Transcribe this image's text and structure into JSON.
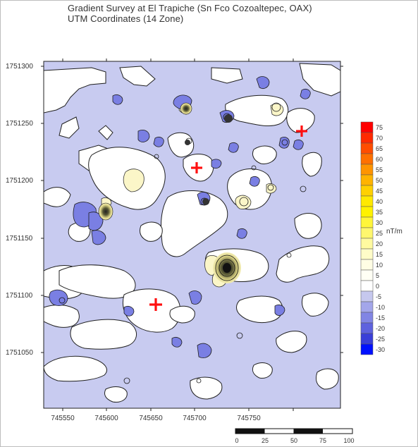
{
  "title": "Gradient Survey at El Trapiche (Sn Fco Cozoaltepec, OAX)",
  "subtitle": "UTM Coordinates (14 Zone)",
  "y_ticks": [
    "1751300",
    "1751250",
    "1751200",
    "1751150",
    "1751100",
    "1751050"
  ],
  "x_ticks": [
    "745550",
    "745600",
    "745650",
    "745700",
    "745750"
  ],
  "unit": "nT/m",
  "legend_levels": [
    "75",
    "70",
    "65",
    "60",
    "55",
    "50",
    "45",
    "40",
    "35",
    "30",
    "25",
    "20",
    "15",
    "10",
    "5",
    "0",
    "-5",
    "-10",
    "-15",
    "-20",
    "-25",
    "-30"
  ],
  "legend_colors": [
    "#ff0000",
    "#ff2a00",
    "#ff4d00",
    "#ff7000",
    "#ff9400",
    "#ffb300",
    "#ffd000",
    "#ffe900",
    "#fff200",
    "#fff53a",
    "#fff76e",
    "#fffaa0",
    "#fffcc8",
    "#fffde4",
    "#fffff5",
    "#ffffff",
    "#c6c8ee",
    "#a3a6ea",
    "#8185e4",
    "#5e62de",
    "#3a3fd8",
    "#0010ff"
  ],
  "scalebar_labels": [
    "0",
    "25",
    "50",
    "75",
    "100"
  ],
  "markers_label": "+",
  "colors": {
    "background": "#c8cbf0",
    "marker": "#ff1010",
    "contour": "#1a1a1a"
  },
  "chart_data": {
    "type": "heatmap",
    "title": "Gradient Survey at El Trapiche (Sn Fco Cozoaltepec, OAX)",
    "subtitle": "UTM Coordinates (14 Zone)",
    "xlim": [
      745533,
      745803
    ],
    "ylim": [
      1751008,
      1751310
    ],
    "x_ticks": [
      745550,
      745600,
      745650,
      745700,
      745750
    ],
    "y_ticks": [
      1751050,
      1751100,
      1751150,
      1751200,
      1751250,
      1751300
    ],
    "colorbar": {
      "label": "nT/m",
      "min": -30,
      "max": 75,
      "step": 5
    },
    "markers": [
      {
        "x": 745670,
        "y": 1751212
      },
      {
        "x": 745762,
        "y": 1751243
      },
      {
        "x": 745630,
        "y": 1751092
      }
    ]
  }
}
